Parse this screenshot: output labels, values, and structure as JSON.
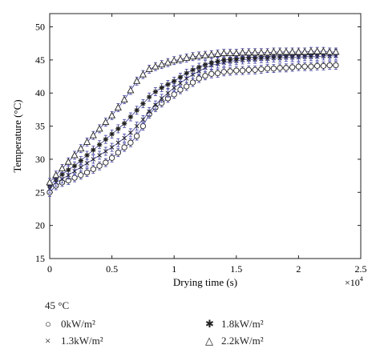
{
  "chart_data": {
    "type": "scatter",
    "xlabel": "Drying time (s)",
    "ylabel": "Temperature (°C)",
    "x_multiplier_label": "×10",
    "x_multiplier_exp": "4",
    "xlim": [
      0,
      25000
    ],
    "ylim": [
      15,
      52
    ],
    "xticks": [
      0,
      5000,
      10000,
      15000,
      20000,
      25000
    ],
    "xtick_labels": [
      "0",
      "0.5",
      "1",
      "1.5",
      "2",
      "2.5"
    ],
    "yticks": [
      15,
      20,
      25,
      30,
      35,
      40,
      45,
      50
    ],
    "ytick_labels": [
      "15",
      "20",
      "25",
      "30",
      "35",
      "40",
      "45",
      "50"
    ],
    "grid": false,
    "legend_title": "45 °C",
    "series": [
      {
        "name": "0kW/m²",
        "marker": "circle",
        "x": [
          0,
          500,
          1000,
          1500,
          2000,
          2500,
          3000,
          3500,
          4000,
          4500,
          5000,
          5500,
          6000,
          6500,
          7000,
          7500,
          8000,
          8500,
          9000,
          9500,
          10000,
          10500,
          11000,
          11500,
          12000,
          12500,
          13000,
          13500,
          14000,
          14500,
          15000,
          15500,
          16000,
          16500,
          17000,
          17500,
          18000,
          18500,
          19000,
          19500,
          20000,
          20500,
          21000,
          21500,
          22000,
          22500,
          23000
        ],
        "y": [
          25.0,
          26.0,
          26.5,
          26.8,
          27.2,
          27.6,
          28.0,
          28.5,
          29.0,
          29.5,
          30.2,
          31.0,
          31.8,
          32.5,
          33.5,
          35.0,
          36.8,
          37.8,
          38.5,
          39.2,
          39.8,
          40.5,
          41.0,
          41.6,
          42.2,
          42.6,
          42.9,
          43.0,
          43.2,
          43.3,
          43.4,
          43.4,
          43.5,
          43.5,
          43.6,
          43.7,
          43.7,
          43.8,
          43.8,
          43.9,
          44.0,
          44.0,
          44.0,
          44.1,
          44.1,
          44.2,
          44.2
        ]
      },
      {
        "name": "1.3kW/m²",
        "marker": "x",
        "x": [
          0,
          500,
          1000,
          1500,
          2000,
          2500,
          3000,
          3500,
          4000,
          4500,
          5000,
          5500,
          6000,
          6500,
          7000,
          7500,
          8000,
          8500,
          9000,
          9500,
          10000,
          10500,
          11000,
          11500,
          12000,
          12500,
          13000,
          13500,
          14000,
          14500,
          15000,
          15500,
          16000,
          16500,
          17000,
          17500,
          18000,
          18500,
          19000,
          19500,
          20000,
          20500,
          21000,
          21500,
          22000,
          22500,
          23000
        ],
        "y": [
          25.5,
          26.5,
          27.0,
          27.6,
          28.2,
          28.8,
          29.4,
          30.0,
          30.6,
          31.2,
          31.8,
          32.5,
          33.2,
          34.0,
          35.0,
          36.0,
          37.2,
          38.2,
          39.2,
          40.0,
          40.8,
          41.5,
          42.2,
          42.8,
          43.3,
          43.8,
          44.2,
          44.4,
          44.6,
          44.8,
          44.9,
          45.0,
          45.1,
          45.1,
          45.2,
          45.2,
          45.3,
          45.3,
          45.4,
          45.4,
          45.4,
          45.5,
          45.5,
          45.5,
          45.6,
          45.6,
          45.6
        ]
      },
      {
        "name": "1.8kW/m²",
        "marker": "star",
        "x": [
          0,
          500,
          1000,
          1500,
          2000,
          2500,
          3000,
          3500,
          4000,
          4500,
          5000,
          5500,
          6000,
          6500,
          7000,
          7500,
          8000,
          8500,
          9000,
          9500,
          10000,
          10500,
          11000,
          11500,
          12000,
          12500,
          13000,
          13500,
          14000,
          14500,
          15000,
          15500,
          16000,
          16500,
          17000,
          17500,
          18000,
          18500,
          19000,
          19500,
          20000,
          20500,
          21000,
          21500,
          22000,
          22500,
          23000
        ],
        "y": [
          26.0,
          27.0,
          27.7,
          28.4,
          29.0,
          29.8,
          30.6,
          31.4,
          32.2,
          33.0,
          33.8,
          34.6,
          35.4,
          36.4,
          37.4,
          38.4,
          39.4,
          40.2,
          40.8,
          41.3,
          41.8,
          42.4,
          43.0,
          43.5,
          43.9,
          44.3,
          44.6,
          44.8,
          45.0,
          45.1,
          45.2,
          45.3,
          45.4,
          45.4,
          45.5,
          45.5,
          45.6,
          45.6,
          45.7,
          45.7,
          45.8,
          45.8,
          45.8,
          45.9,
          45.9,
          45.9,
          46.0
        ]
      },
      {
        "name": "2.2kW/m²",
        "marker": "triangle",
        "x": [
          0,
          500,
          1000,
          1500,
          2000,
          2500,
          3000,
          3500,
          4000,
          4500,
          5000,
          5500,
          6000,
          6500,
          7000,
          7500,
          8000,
          8500,
          9000,
          9500,
          10000,
          10500,
          11000,
          11500,
          12000,
          12500,
          13000,
          13500,
          14000,
          14500,
          15000,
          15500,
          16000,
          16500,
          17000,
          17500,
          18000,
          18500,
          19000,
          19500,
          20000,
          20500,
          21000,
          21500,
          22000,
          22500,
          23000
        ],
        "y": [
          26.5,
          27.6,
          28.6,
          29.6,
          30.6,
          31.6,
          32.6,
          33.6,
          34.6,
          35.6,
          36.6,
          37.8,
          39.0,
          40.4,
          41.8,
          42.8,
          43.6,
          44.0,
          44.3,
          44.6,
          44.9,
          45.1,
          45.3,
          45.5,
          45.6,
          45.7,
          45.8,
          45.9,
          46.0,
          46.0,
          46.0,
          46.1,
          46.1,
          46.1,
          46.1,
          46.1,
          46.2,
          46.2,
          46.2,
          46.2,
          46.2,
          46.2,
          46.3,
          46.3,
          46.3,
          46.2,
          46.2
        ]
      }
    ],
    "colors": {
      "markers": "#222222",
      "error_bars": "#3b3b9e",
      "axes": "#222222"
    }
  }
}
